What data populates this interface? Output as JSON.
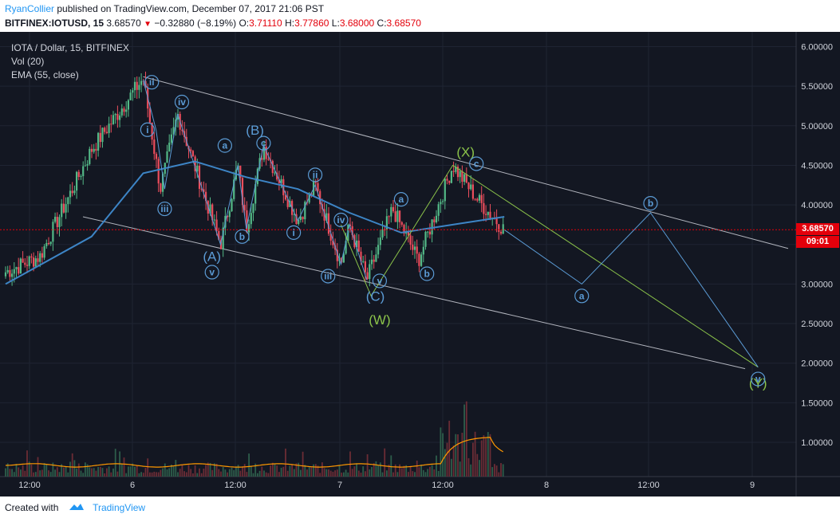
{
  "header": {
    "author": "RyanCollier",
    "published_text": "published on TradingView.com, December 07, 2017 21:06 PST",
    "symbol_line": "BITFINEX:IOTUSD, 15",
    "last": "3.68570",
    "change": "−0.32880 (−8.19%)",
    "o_label": "O:",
    "o": "3.71110",
    "h_label": "H:",
    "h": "3.77860",
    "l_label": "L:",
    "l": "3.68000",
    "c_label": "C:",
    "c": "3.68570"
  },
  "legend": {
    "title": "IOTA / Dollar, 15, BITFINEX",
    "vol": "Vol (20)",
    "ema": "EMA (55, close)"
  },
  "price_tag": {
    "price": "3.68570",
    "countdown": "09:01"
  },
  "footer": {
    "created_with": "Created with",
    "brand": "TradingView"
  },
  "colors": {
    "background": "#131722",
    "up": "#53b987",
    "down": "#eb4d5c",
    "ema": "#3d85c6",
    "vol_ma": "#ff9800",
    "wave_blue": "#5b9bd5",
    "wave_green": "#8bc34a",
    "channel": "#b2b5be",
    "price_line": "#e3000b"
  },
  "chart_data": {
    "type": "candlestick",
    "title": "IOTA / Dollar, 15, BITFINEX",
    "x_tick_labels": [
      "12:00",
      "6",
      "12:00",
      "7",
      "12:00",
      "8",
      "12:00",
      "9"
    ],
    "y_tick_labels": [
      "6.00000",
      "5.50000",
      "5.00000",
      "4.50000",
      "4.00000",
      "3.50000",
      "3.00000",
      "2.50000",
      "2.00000",
      "1.50000",
      "1.00000"
    ],
    "ylim": [
      0.95,
      6.35
    ],
    "last_price": 3.6857,
    "price_path": [
      {
        "t": "Dec 5 08:00",
        "price": 3.15
      },
      {
        "t": "Dec 5 12:00",
        "price": 3.35
      },
      {
        "t": "Dec 5 18:00",
        "price": 4.7
      },
      {
        "t": "Dec 6 00:00",
        "price": 5.6
      },
      {
        "t": "Dec 6 02:00",
        "price": 4.2
      },
      {
        "t": "Dec 6 04:00",
        "price": 5.15
      },
      {
        "t": "Dec 6 09:00",
        "price": 3.5
      },
      {
        "t": "Dec 6 11:00",
        "price": 4.5
      },
      {
        "t": "Dec 6 12:00",
        "price": 3.7
      },
      {
        "t": "Dec 6 14:00",
        "price": 4.75
      },
      {
        "t": "Dec 6 18:00",
        "price": 3.8
      },
      {
        "t": "Dec 6 20:00",
        "price": 4.25
      },
      {
        "t": "Dec 6 23:00",
        "price": 3.25
      },
      {
        "t": "Dec 7 00:00",
        "price": 3.75
      },
      {
        "t": "Dec 7 02:00",
        "price": 3.05
      },
      {
        "t": "Dec 7 05:00",
        "price": 3.95
      },
      {
        "t": "Dec 7 08:00",
        "price": 3.3
      },
      {
        "t": "Dec 7 12:00",
        "price": 4.5
      },
      {
        "t": "Dec 7 15:00",
        "price": 4.05
      },
      {
        "t": "Dec 7 18:00",
        "price": 3.6857
      }
    ],
    "ema_path": [
      {
        "t": "Dec 5 08:00",
        "price": 3.0
      },
      {
        "t": "Dec 5 18:00",
        "price": 3.6
      },
      {
        "t": "Dec 6 00:00",
        "price": 4.4
      },
      {
        "t": "Dec 6 06:00",
        "price": 4.55
      },
      {
        "t": "Dec 6 12:00",
        "price": 4.35
      },
      {
        "t": "Dec 6 18:00",
        "price": 4.2
      },
      {
        "t": "Dec 7 00:00",
        "price": 3.9
      },
      {
        "t": "Dec 7 06:00",
        "price": 3.65
      },
      {
        "t": "Dec 7 12:00",
        "price": 3.75
      },
      {
        "t": "Dec 7 18:00",
        "price": 3.85
      }
    ],
    "wave_labels": [
      {
        "label": "ii",
        "price": 5.55,
        "style": "circle"
      },
      {
        "label": "i",
        "price": 4.95,
        "style": "circle"
      },
      {
        "label": "iv",
        "price": 5.3,
        "style": "circle"
      },
      {
        "label": "iii",
        "price": 3.95,
        "style": "circle"
      },
      {
        "label": "a",
        "price": 4.75,
        "style": "circle"
      },
      {
        "label": "(A)",
        "price": 3.35,
        "style": "text"
      },
      {
        "label": "v",
        "price": 3.15,
        "style": "circle"
      },
      {
        "label": "b",
        "price": 3.6,
        "style": "circle"
      },
      {
        "label": "(B)",
        "price": 4.95,
        "style": "text"
      },
      {
        "label": "c",
        "price": 4.78,
        "style": "circle"
      },
      {
        "label": "ii",
        "price": 4.38,
        "style": "circle"
      },
      {
        "label": "i",
        "price": 3.65,
        "style": "circle"
      },
      {
        "label": "iv",
        "price": 3.81,
        "style": "circle"
      },
      {
        "label": "iii",
        "price": 3.1,
        "style": "circle"
      },
      {
        "label": "v",
        "price": 3.04,
        "style": "circle"
      },
      {
        "label": "(C)",
        "price": 2.85,
        "style": "text"
      },
      {
        "label": "(W)",
        "price": 2.55,
        "style": "text-green"
      },
      {
        "label": "a",
        "price": 4.07,
        "style": "circle"
      },
      {
        "label": "b",
        "price": 3.13,
        "style": "circle"
      },
      {
        "label": "(X)",
        "price": 4.67,
        "style": "text-green"
      },
      {
        "label": "c",
        "price": 4.52,
        "style": "circle"
      },
      {
        "label": "a",
        "price": 2.85,
        "style": "circle"
      },
      {
        "label": "b",
        "price": 4.02,
        "style": "circle"
      },
      {
        "label": "(Y)",
        "price": 1.75,
        "style": "text-green"
      },
      {
        "label": "v",
        "price": 1.8,
        "style": "circle"
      }
    ],
    "projection_blue": [
      3.6857,
      3.0,
      3.9,
      1.95
    ],
    "projection_green": [
      4.5,
      1.95
    ]
  }
}
